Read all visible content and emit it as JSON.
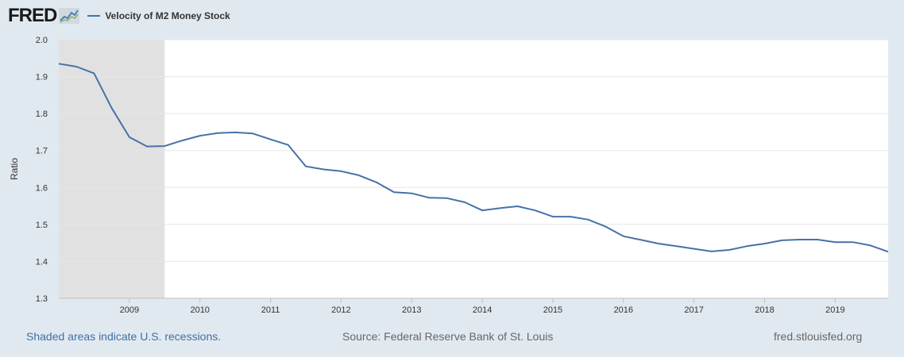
{
  "header": {
    "logo_text": "FRED",
    "legend_label": "Velocity of M2 Money Stock"
  },
  "footer": {
    "recession_note": "Shaded areas indicate U.S. recessions.",
    "source": "Source: Federal Reserve Bank of St. Louis",
    "site": "fred.stlouisfed.org"
  },
  "colors": {
    "series": "#4572a7",
    "recession": "#e1e1e1",
    "background": "#e1e9f0",
    "plot": "#ffffff"
  },
  "chart_data": {
    "type": "line",
    "title": "",
    "xlabel": "",
    "ylabel": "Ratio",
    "ylim": [
      1.3,
      2.0
    ],
    "yticks": [
      1.3,
      1.4,
      1.5,
      1.6,
      1.7,
      1.8,
      1.9,
      2.0
    ],
    "xlim": [
      2008.0,
      2019.75
    ],
    "xticks": [
      2009,
      2010,
      2011,
      2012,
      2013,
      2014,
      2015,
      2016,
      2017,
      2018,
      2019
    ],
    "grid": true,
    "legend": "top-left",
    "recessions": [
      {
        "start": 2008.0,
        "end": 2009.5
      }
    ],
    "series": [
      {
        "name": "Velocity of M2 Money Stock",
        "x": [
          2008.0,
          2008.25,
          2008.5,
          2008.75,
          2009.0,
          2009.25,
          2009.5,
          2009.75,
          2010.0,
          2010.25,
          2010.5,
          2010.75,
          2011.0,
          2011.25,
          2011.5,
          2011.75,
          2012.0,
          2012.25,
          2012.5,
          2012.75,
          2013.0,
          2013.25,
          2013.5,
          2013.75,
          2014.0,
          2014.25,
          2014.5,
          2014.75,
          2015.0,
          2015.25,
          2015.5,
          2015.75,
          2016.0,
          2016.25,
          2016.5,
          2016.75,
          2017.0,
          2017.25,
          2017.5,
          2017.75,
          2018.0,
          2018.25,
          2018.5,
          2018.75,
          2019.0,
          2019.25,
          2019.5,
          2019.75
        ],
        "values": [
          1.935,
          1.927,
          1.909,
          1.815,
          1.736,
          1.711,
          1.712,
          1.727,
          1.74,
          1.747,
          1.749,
          1.746,
          1.73,
          1.715,
          1.657,
          1.649,
          1.644,
          1.633,
          1.614,
          1.587,
          1.584,
          1.572,
          1.571,
          1.56,
          1.538,
          1.544,
          1.549,
          1.538,
          1.521,
          1.521,
          1.513,
          1.494,
          1.468,
          1.458,
          1.448,
          1.441,
          1.434,
          1.427,
          1.431,
          1.441,
          1.448,
          1.457,
          1.459,
          1.459,
          1.452,
          1.452,
          1.443,
          1.426
        ]
      }
    ]
  }
}
